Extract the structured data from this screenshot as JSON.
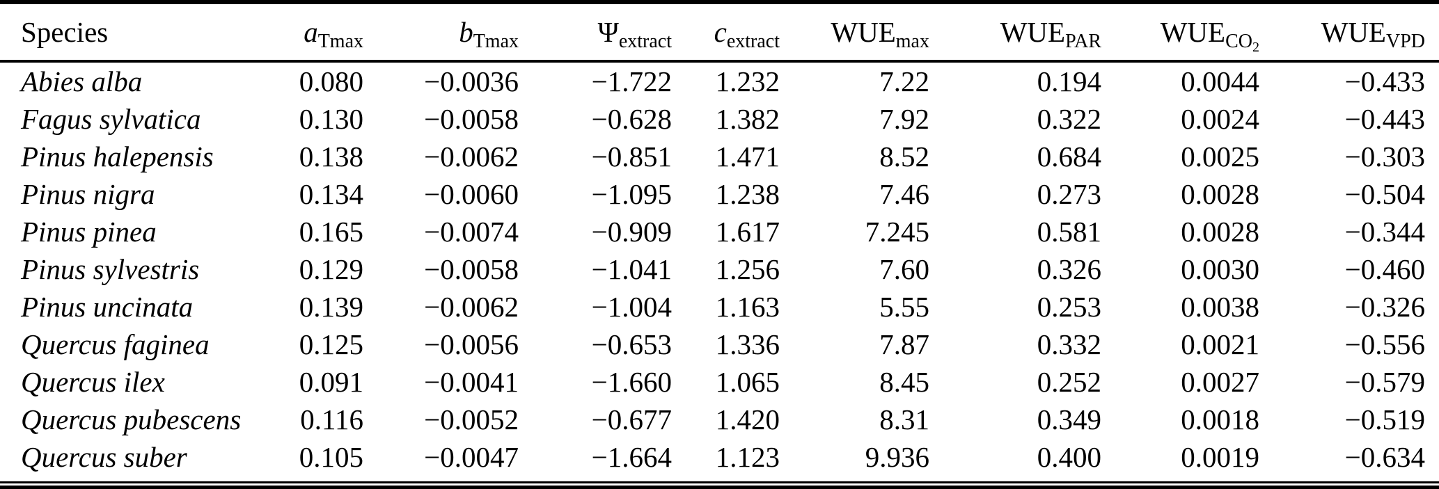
{
  "table": {
    "colors": {
      "text": "#000000",
      "background": "#ffffff",
      "rule": "#000000"
    },
    "columns": [
      {
        "id": "species",
        "base": "Species",
        "italic": false,
        "sub": ""
      },
      {
        "id": "a-tmax",
        "base": "a",
        "italic": true,
        "sub": "Tmax"
      },
      {
        "id": "b-tmax",
        "base": "b",
        "italic": true,
        "sub": "Tmax"
      },
      {
        "id": "psi-extract",
        "base": "Ψ",
        "italic": false,
        "sub": "extract"
      },
      {
        "id": "c-extract",
        "base": "c",
        "italic": true,
        "sub": "extract"
      },
      {
        "id": "wue-max",
        "base": "WUE",
        "italic": false,
        "sub": "max"
      },
      {
        "id": "wue-par",
        "base": "WUE",
        "italic": false,
        "sub": "PAR"
      },
      {
        "id": "wue-co2",
        "base": "WUE",
        "italic": false,
        "sub": "CO",
        "subsub": "2"
      },
      {
        "id": "wue-vpd",
        "base": "WUE",
        "italic": false,
        "sub": "VPD"
      }
    ],
    "rows": [
      {
        "species": "Abies alba",
        "values": [
          "0.080",
          "−0.0036",
          "−1.722",
          "1.232",
          "7.22",
          "0.194",
          "0.0044",
          "−0.433"
        ]
      },
      {
        "species": "Fagus sylvatica",
        "values": [
          "0.130",
          "−0.0058",
          "−0.628",
          "1.382",
          "7.92",
          "0.322",
          "0.0024",
          "−0.443"
        ]
      },
      {
        "species": "Pinus halepensis",
        "values": [
          "0.138",
          "−0.0062",
          "−0.851",
          "1.471",
          "8.52",
          "0.684",
          "0.0025",
          "−0.303"
        ]
      },
      {
        "species": "Pinus nigra",
        "values": [
          "0.134",
          "−0.0060",
          "−1.095",
          "1.238",
          "7.46",
          "0.273",
          "0.0028",
          "−0.504"
        ]
      },
      {
        "species": "Pinus pinea",
        "values": [
          "0.165",
          "−0.0074",
          "−0.909",
          "1.617",
          "7.245",
          "0.581",
          "0.0028",
          "−0.344"
        ]
      },
      {
        "species": "Pinus sylvestris",
        "values": [
          "0.129",
          "−0.0058",
          "−1.041",
          "1.256",
          "7.60",
          "0.326",
          "0.0030",
          "−0.460"
        ]
      },
      {
        "species": "Pinus uncinata",
        "values": [
          "0.139",
          "−0.0062",
          "−1.004",
          "1.163",
          "5.55",
          "0.253",
          "0.0038",
          "−0.326"
        ]
      },
      {
        "species": "Quercus faginea",
        "values": [
          "0.125",
          "−0.0056",
          "−0.653",
          "1.336",
          "7.87",
          "0.332",
          "0.0021",
          "−0.556"
        ]
      },
      {
        "species": "Quercus ilex",
        "values": [
          "0.091",
          "−0.0041",
          "−1.660",
          "1.065",
          "8.45",
          "0.252",
          "0.0027",
          "−0.579"
        ]
      },
      {
        "species": "Quercus pubescens",
        "values": [
          "0.116",
          "−0.0052",
          "−0.677",
          "1.420",
          "8.31",
          "0.349",
          "0.0018",
          "−0.519"
        ]
      },
      {
        "species": "Quercus suber",
        "values": [
          "0.105",
          "−0.0047",
          "−1.664",
          "1.123",
          "9.936",
          "0.400",
          "0.0019",
          "−0.634"
        ]
      }
    ]
  }
}
